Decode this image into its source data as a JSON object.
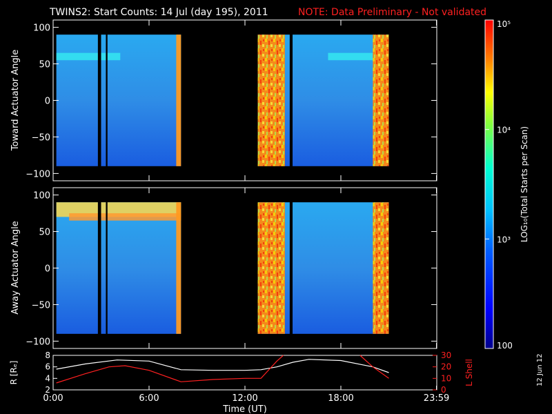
{
  "header": {
    "title": "TWINS2: Start Counts: 14 Jul (day 195), 2011",
    "note": "NOTE: Data Preliminary - Not validated"
  },
  "side_date": "12 Jun 12",
  "colors": {
    "frame": "#ffffff",
    "note": "#ff2020",
    "ephem_r": "#ffffff",
    "ephem_l": "#ff2020",
    "gap": "#000000"
  },
  "chart_data": [
    {
      "type": "heatmap",
      "ylabel": "Toward Actuator Angle",
      "ylim": [
        -110,
        110
      ],
      "yticks": [
        "100",
        "50",
        "0",
        "−50",
        "−100"
      ],
      "data_y_range": [
        -90,
        90
      ],
      "x_range_hours": [
        0,
        24
      ],
      "data_segments": [
        [
          0.2,
          8.0
        ],
        [
          12.8,
          21.0
        ]
      ],
      "gaps_hours": [
        [
          2.8,
          3.0
        ],
        [
          3.3,
          3.4
        ],
        [
          14.8,
          14.98
        ]
      ],
      "bands": [
        {
          "y": [
            55,
            65
          ],
          "segment": [
            0.2,
            4.2
          ],
          "level": "cyan"
        },
        {
          "y": [
            55,
            65
          ],
          "segment": [
            17.2,
            20.0
          ],
          "level": "cyan"
        }
      ],
      "high_regions_hours": [
        [
          7.7,
          8.0
        ],
        [
          12.8,
          14.5
        ],
        [
          20.0,
          21.0
        ]
      ]
    },
    {
      "type": "heatmap",
      "ylabel": "Away Actuator Angle",
      "ylim": [
        -110,
        110
      ],
      "yticks": [
        "100",
        "50",
        "0",
        "−50",
        "−100"
      ],
      "data_y_range": [
        -90,
        90
      ],
      "x_range_hours": [
        0,
        24
      ],
      "data_segments": [
        [
          0.2,
          8.0
        ],
        [
          12.8,
          21.0
        ]
      ],
      "gaps_hours": [
        [
          2.8,
          3.0
        ],
        [
          3.3,
          3.4
        ],
        [
          14.8,
          14.98
        ]
      ],
      "bands": [
        {
          "y": [
            70,
            90
          ],
          "segment": [
            0.2,
            8.0
          ],
          "level": "yellow"
        },
        {
          "y": [
            65,
            75
          ],
          "segment": [
            1.0,
            8.0
          ],
          "level": "orange"
        }
      ],
      "high_regions_hours": [
        [
          7.7,
          8.0
        ],
        [
          12.8,
          14.5
        ],
        [
          20.0,
          21.0
        ]
      ]
    },
    {
      "type": "line",
      "xlabel": "Time (UT)",
      "xtick_labels": [
        "0:00",
        "6:00",
        "12:00",
        "18:00",
        "23:59"
      ],
      "xticks_hours": [
        0,
        6,
        12,
        18,
        23.98
      ],
      "ylabel_left": "R [Rₑ]",
      "yticks_left": [
        "2",
        "4",
        "6",
        "8"
      ],
      "ylim_left": [
        2,
        8
      ],
      "ylabel_right": "L Shell",
      "yticks_right": [
        "0",
        "10",
        "20",
        "30"
      ],
      "ylim_right": [
        0,
        30
      ],
      "series": [
        {
          "axis": "left",
          "x": [
            0.2,
            2,
            4,
            6,
            8,
            10,
            12,
            13,
            14,
            15,
            16,
            18,
            20,
            21
          ],
          "y": [
            5.6,
            6.5,
            7.2,
            7.0,
            5.5,
            5.4,
            5.4,
            5.5,
            6.0,
            6.8,
            7.3,
            7.1,
            6.0,
            5.0
          ]
        },
        {
          "axis": "right",
          "x": [
            0.2,
            2,
            3.5,
            4.5,
            6,
            8,
            10,
            12,
            13,
            14,
            14.4
          ],
          "y": [
            6,
            14,
            20,
            21,
            17,
            7,
            9,
            10,
            10,
            25,
            30
          ]
        },
        {
          "axis": "right",
          "x": [
            19.2,
            20.0,
            21
          ],
          "y": [
            30,
            20,
            10
          ]
        }
      ]
    }
  ],
  "colorbar": {
    "label": "LOG₁₀(Total Starts per Scan)",
    "ticks": [
      "10⁵",
      "10⁴",
      "10³",
      "100"
    ],
    "tick_values": [
      100000,
      10000,
      1000,
      100
    ],
    "range": [
      100,
      100000
    ],
    "scale": "log"
  }
}
